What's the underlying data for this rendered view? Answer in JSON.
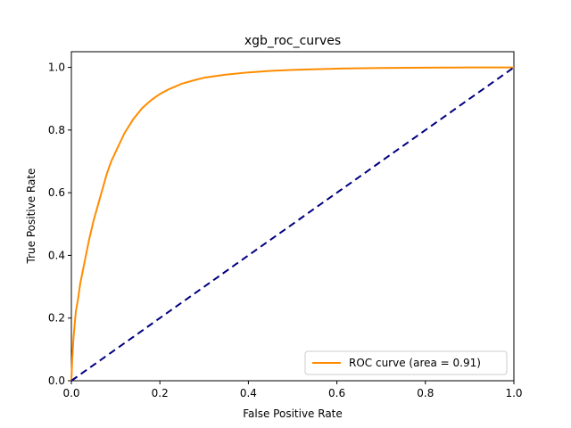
{
  "chart_data": {
    "type": "line",
    "title": "xgb_roc_curves",
    "xlabel": "False Positive Rate",
    "ylabel": "True Positive Rate",
    "xlim": [
      0.0,
      1.0
    ],
    "ylim": [
      0.0,
      1.05
    ],
    "xticks": [
      0.0,
      0.2,
      0.4,
      0.6,
      0.8,
      1.0
    ],
    "yticks": [
      0.0,
      0.2,
      0.4,
      0.6,
      0.8,
      1.0
    ],
    "tick_labels_x": [
      "0.0",
      "0.2",
      "0.4",
      "0.6",
      "0.8",
      "1.0"
    ],
    "tick_labels_y": [
      "0.0",
      "0.2",
      "0.4",
      "0.6",
      "0.8",
      "1.0"
    ],
    "grid": false,
    "legend_placement": "lower-right",
    "series": [
      {
        "name": "ROC curve (area = 0.91)",
        "color": "#ff8c00",
        "style": "solid",
        "x": [
          0.0,
          0.002,
          0.005,
          0.01,
          0.015,
          0.02,
          0.03,
          0.04,
          0.05,
          0.06,
          0.07,
          0.08,
          0.09,
          0.1,
          0.12,
          0.14,
          0.16,
          0.18,
          0.2,
          0.22,
          0.25,
          0.28,
          0.3,
          0.35,
          0.4,
          0.45,
          0.5,
          0.6,
          0.7,
          0.8,
          0.9,
          1.0
        ],
        "y": [
          0.0,
          0.07,
          0.14,
          0.22,
          0.26,
          0.31,
          0.38,
          0.45,
          0.51,
          0.56,
          0.61,
          0.66,
          0.7,
          0.73,
          0.79,
          0.835,
          0.87,
          0.895,
          0.915,
          0.93,
          0.948,
          0.96,
          0.967,
          0.977,
          0.984,
          0.989,
          0.992,
          0.996,
          0.998,
          0.999,
          1.0,
          1.0
        ]
      },
      {
        "name": "",
        "color": "#000080",
        "style": "dashed",
        "x": [
          0.0,
          1.0
        ],
        "y": [
          0.0,
          1.0
        ]
      }
    ],
    "legend": [
      {
        "label": "ROC curve (area = 0.91)",
        "color": "#ff8c00"
      }
    ]
  }
}
